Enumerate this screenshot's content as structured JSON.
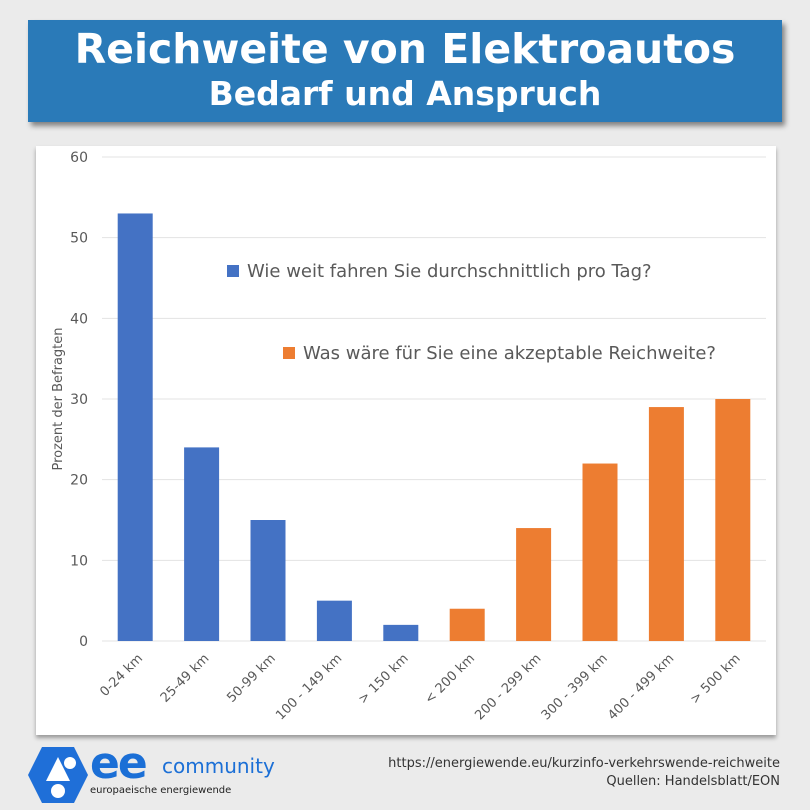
{
  "header": {
    "title": "Reichweite von Elektroautos",
    "subtitle": "Bedarf und Anspruch"
  },
  "chart_data": {
    "type": "bar",
    "title": "Reichweite von Elektroautos – Bedarf und Anspruch",
    "ylabel": "Prozent der Befragten",
    "xlabel": "",
    "ylim": [
      0,
      60
    ],
    "yticks": [
      0,
      10,
      20,
      30,
      40,
      50,
      60
    ],
    "grid": true,
    "categories": [
      "0-24 km",
      "25-49 km",
      "50-99 km",
      "100 - 149 km",
      "> 150 km",
      "< 200 km",
      "200 - 299 km",
      "300 - 399 km",
      "400 - 499 km",
      "> 500 km"
    ],
    "values": [
      53,
      24,
      15,
      5,
      2,
      4,
      14,
      22,
      29,
      30
    ],
    "series": [
      {
        "name": "Wie weit fahren Sie durchschnittlich pro Tag?",
        "color": "#4472c4",
        "indices": [
          0,
          1,
          2,
          3,
          4
        ]
      },
      {
        "name": "Was wäre für Sie eine akzeptable Reichweite?",
        "color": "#ed7d31",
        "indices": [
          5,
          6,
          7,
          8,
          9
        ]
      }
    ],
    "legend_position": "center-right"
  },
  "footer": {
    "url": "https://energiewende.eu/kurzinfo-verkehrswende-reichweite",
    "sources": "Quellen: Handelsblatt/EON",
    "logo_text": "ee community europaeische energiewende"
  }
}
